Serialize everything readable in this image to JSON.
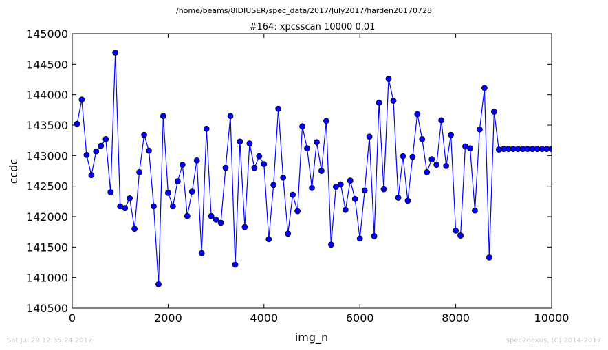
{
  "header": {
    "path": "/home/beams/8IDIUSER/spec_data/2017/July2017/harden20170728"
  },
  "footer": {
    "timestamp": "Sat Jul 29 12:35:24 2017",
    "credit": "spec2nexus, (C) 2014-2017"
  },
  "chart_data": {
    "type": "line",
    "title": "#164: xpcsscan 10000 0.01",
    "xlabel": "img_n",
    "ylabel": "ccdc",
    "xlim": [
      0,
      10000
    ],
    "ylim": [
      140500,
      145000
    ],
    "xticks": [
      "0",
      "2000",
      "4000",
      "6000",
      "8000",
      "10000"
    ],
    "yticks": [
      "140500",
      "141000",
      "141500",
      "142000",
      "142500",
      "143000",
      "143500",
      "144000",
      "144500",
      "145000"
    ],
    "grid": false,
    "colors": {
      "series": "#0000ff",
      "marker_edge": "#000000"
    },
    "series": [
      {
        "x": [
          100,
          200,
          300,
          400,
          500,
          600,
          700,
          800,
          900,
          1000,
          1100,
          1200,
          1300,
          1400,
          1500,
          1600,
          1700,
          1800,
          1900,
          2000,
          2100,
          2200,
          2300,
          2400,
          2500,
          2600,
          2700,
          2800,
          2900,
          3000,
          3100,
          3200,
          3300,
          3400,
          3500,
          3600,
          3700,
          3800,
          3900,
          4000,
          4100,
          4200,
          4300,
          4400,
          4500,
          4600,
          4700,
          4800,
          4900,
          5000,
          5100,
          5200,
          5300,
          5400,
          5500,
          5600,
          5700,
          5800,
          5900,
          6000,
          6100,
          6200,
          6300,
          6400,
          6500,
          6600,
          6700,
          6800,
          6900,
          7000,
          7100,
          7200,
          7300,
          7400,
          7500,
          7600,
          7700,
          7800,
          7900,
          8000,
          8100,
          8200,
          8300,
          8400,
          8500,
          8600,
          8700,
          8800,
          8900,
          9000,
          9100,
          9200,
          9300,
          9400,
          9500,
          9600,
          9700,
          9800,
          9900,
          10000
        ],
        "values": [
          143520,
          143920,
          143010,
          142680,
          143070,
          143160,
          143270,
          142400,
          144690,
          142170,
          142140,
          142300,
          141800,
          142730,
          143340,
          143080,
          142170,
          140890,
          143650,
          142390,
          142170,
          142580,
          142850,
          142010,
          142410,
          142920,
          141400,
          143440,
          142010,
          141950,
          141900,
          142800,
          143650,
          141210,
          143230,
          141830,
          143200,
          142800,
          142990,
          142860,
          141630,
          142520,
          143770,
          142640,
          141720,
          142360,
          142090,
          143480,
          143120,
          142470,
          143220,
          142750,
          143570,
          141540,
          142490,
          142530,
          142110,
          142590,
          142290,
          141640,
          142430,
          143310,
          141680,
          143870,
          142450,
          144260,
          143900,
          142310,
          142990,
          142260,
          142980,
          143680,
          143270,
          142730,
          142940,
          142850,
          143580,
          142830,
          143340,
          141770,
          141690,
          143150,
          143120,
          142100,
          143430,
          144110,
          141330,
          143720,
          143100,
          143110,
          143110,
          143110,
          143110,
          143110,
          143110,
          143110,
          143110,
          143110,
          143110,
          143110
        ]
      }
    ]
  }
}
